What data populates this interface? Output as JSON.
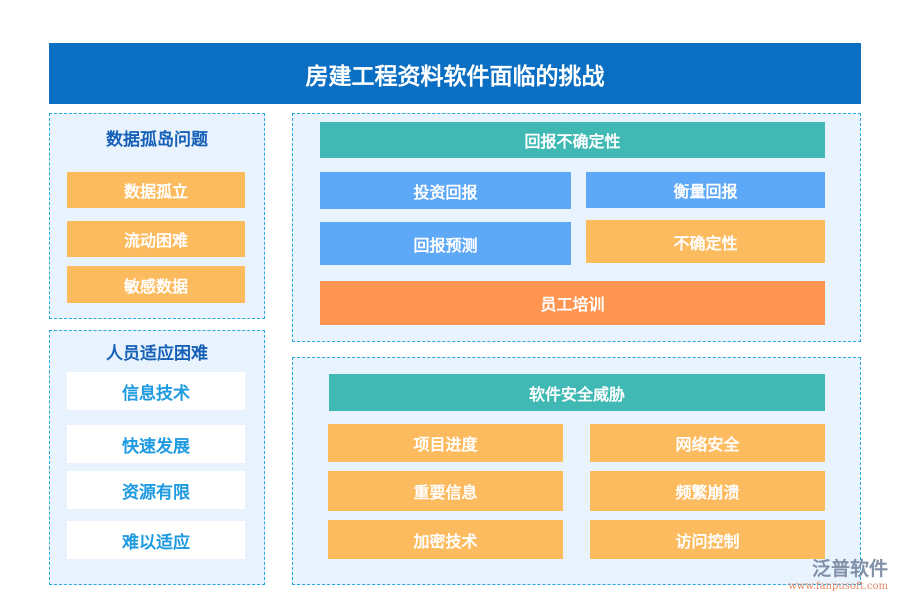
{
  "title": "房建工程资料软件面临的挑战",
  "data_silo": {
    "heading": "数据孤岛问题",
    "items": [
      "数据孤立",
      "流动困难",
      "敏感数据"
    ]
  },
  "staff": {
    "heading": "人员适应困难",
    "items": [
      "信息技术",
      "快速发展",
      "资源有限",
      "难以适应"
    ]
  },
  "return": {
    "heading": "回报不确定性",
    "items": [
      "投资回报",
      "衡量回报",
      "回报预测",
      "不确定性",
      "员工培训"
    ]
  },
  "security": {
    "heading": "软件安全威胁",
    "items": [
      "项目进度",
      "网络安全",
      "重要信息",
      "频繁崩溃",
      "加密技术",
      "访问控制"
    ]
  },
  "logo": {
    "name": "泛普软件",
    "url": "www.fanpusoft.com"
  },
  "colors": {
    "title": "#0a6fc2",
    "orange": "#fdbb5f",
    "blue": "#5ea8f8",
    "teal": "#40b9b5",
    "dark_orange": "#ff9550"
  }
}
